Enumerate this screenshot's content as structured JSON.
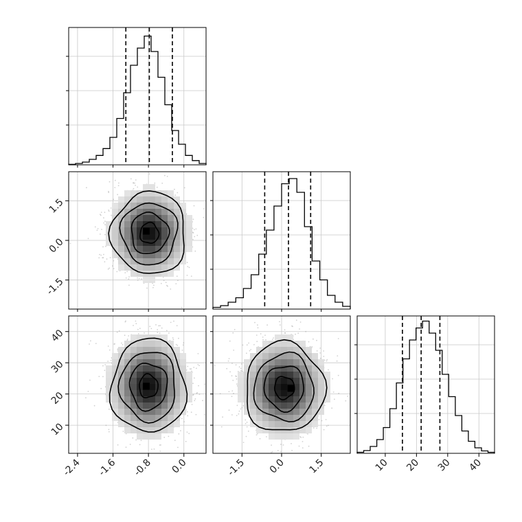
{
  "chart_data": {
    "type": "corner",
    "grid": true,
    "parameters": [
      {
        "index": 0,
        "range": [
          -2.6,
          0.5
        ],
        "ticks": [
          -2.4,
          -1.6,
          -0.8,
          0.0
        ],
        "tick_labels": [
          "-2.4",
          "-1.6",
          "-0.8",
          "0.0"
        ],
        "quantiles": [
          -1.31,
          -0.78,
          -0.26
        ],
        "hist": [
          0.3,
          0.8,
          1.6,
          3.2,
          5.5,
          9.5,
          16.0,
          27.0,
          42.0,
          58.0,
          68.0,
          75.0,
          66.0,
          51.0,
          35.0,
          20.0,
          12.0,
          5.5,
          2.5,
          0.8
        ],
        "hist_ylim": [
          0,
          80
        ]
      },
      {
        "index": 1,
        "range": [
          -2.6,
          2.6
        ],
        "ticks": [
          -1.5,
          0.0,
          1.5
        ],
        "tick_labels": [
          "-1.5",
          "0.0",
          "1.5"
        ],
        "quantiles": [
          -0.64,
          0.26,
          1.1
        ],
        "hist": [
          0.5,
          1.0,
          2.0,
          3.3,
          6.0,
          10.0,
          16.0,
          23.0,
          30.0,
          36.5,
          38.0,
          34.0,
          24.0,
          14.0,
          8.5,
          4.0,
          2.0,
          0.8
        ],
        "hist_ylim": [
          0,
          40
        ]
      },
      {
        "index": 2,
        "range": [
          1,
          45
        ],
        "ticks": [
          10,
          20,
          30,
          40
        ],
        "tick_labels": [
          "10",
          "20",
          "30",
          "40"
        ],
        "quantiles": [
          15.5,
          21.5,
          27.5
        ],
        "hist": [
          0.3,
          0.8,
          2.0,
          4.0,
          7.5,
          13.0,
          20.5,
          27.5,
          33.0,
          36.5,
          38.5,
          35.0,
          30.0,
          23.0,
          16.5,
          11.0,
          6.5,
          3.5,
          1.6,
          0.7,
          0.3
        ],
        "hist_ylim": [
          0,
          40
        ]
      }
    ],
    "pairs": [
      {
        "x": 0,
        "y": 1,
        "center": [
          -0.78,
          0.27
        ],
        "sigma": [
          0.42,
          0.78
        ],
        "peak": [
          -0.85,
          0.35
        ]
      },
      {
        "x": 0,
        "y": 2,
        "center": [
          -0.8,
          22.5
        ],
        "sigma": [
          0.42,
          7.5
        ],
        "peak": [
          -0.85,
          22.5
        ]
      },
      {
        "x": 1,
        "y": 2,
        "center": [
          0.1,
          22.0
        ],
        "sigma": [
          0.75,
          7.2
        ],
        "peak": [
          0.35,
          21.8
        ]
      }
    ]
  }
}
